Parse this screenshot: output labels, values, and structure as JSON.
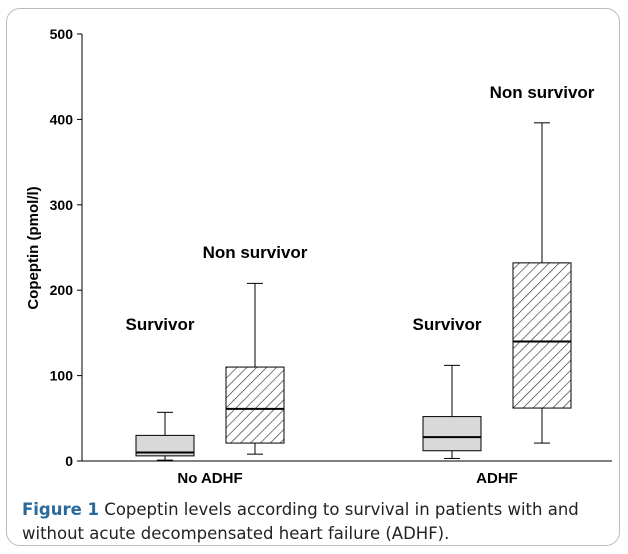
{
  "chart_data": {
    "type": "box",
    "y_label": "Copeptin (pmol/l)",
    "categories": [
      "No ADHF",
      "ADHF"
    ],
    "ylim": [
      0,
      500
    ],
    "yticks": [
      0,
      100,
      200,
      300,
      400,
      500
    ],
    "series": [
      {
        "name": "Survivor",
        "color": "#d9d9d9",
        "hatch": false,
        "min": [
          1,
          3
        ],
        "q1": [
          6,
          12
        ],
        "median": [
          10,
          28
        ],
        "q3": [
          30,
          52
        ],
        "max": [
          57,
          112
        ]
      },
      {
        "name": "Non survivor",
        "color": "#ffffff",
        "hatch": true,
        "min": [
          8,
          21
        ],
        "q1": [
          21,
          62
        ],
        "median": [
          61,
          140
        ],
        "q3": [
          110,
          232
        ],
        "max": [
          208,
          396
        ]
      }
    ]
  },
  "caption": {
    "label": "Figure 1",
    "text": "Copeptin levels according to survival in patients with and without acute decompensated heart failure (ADHF)."
  }
}
